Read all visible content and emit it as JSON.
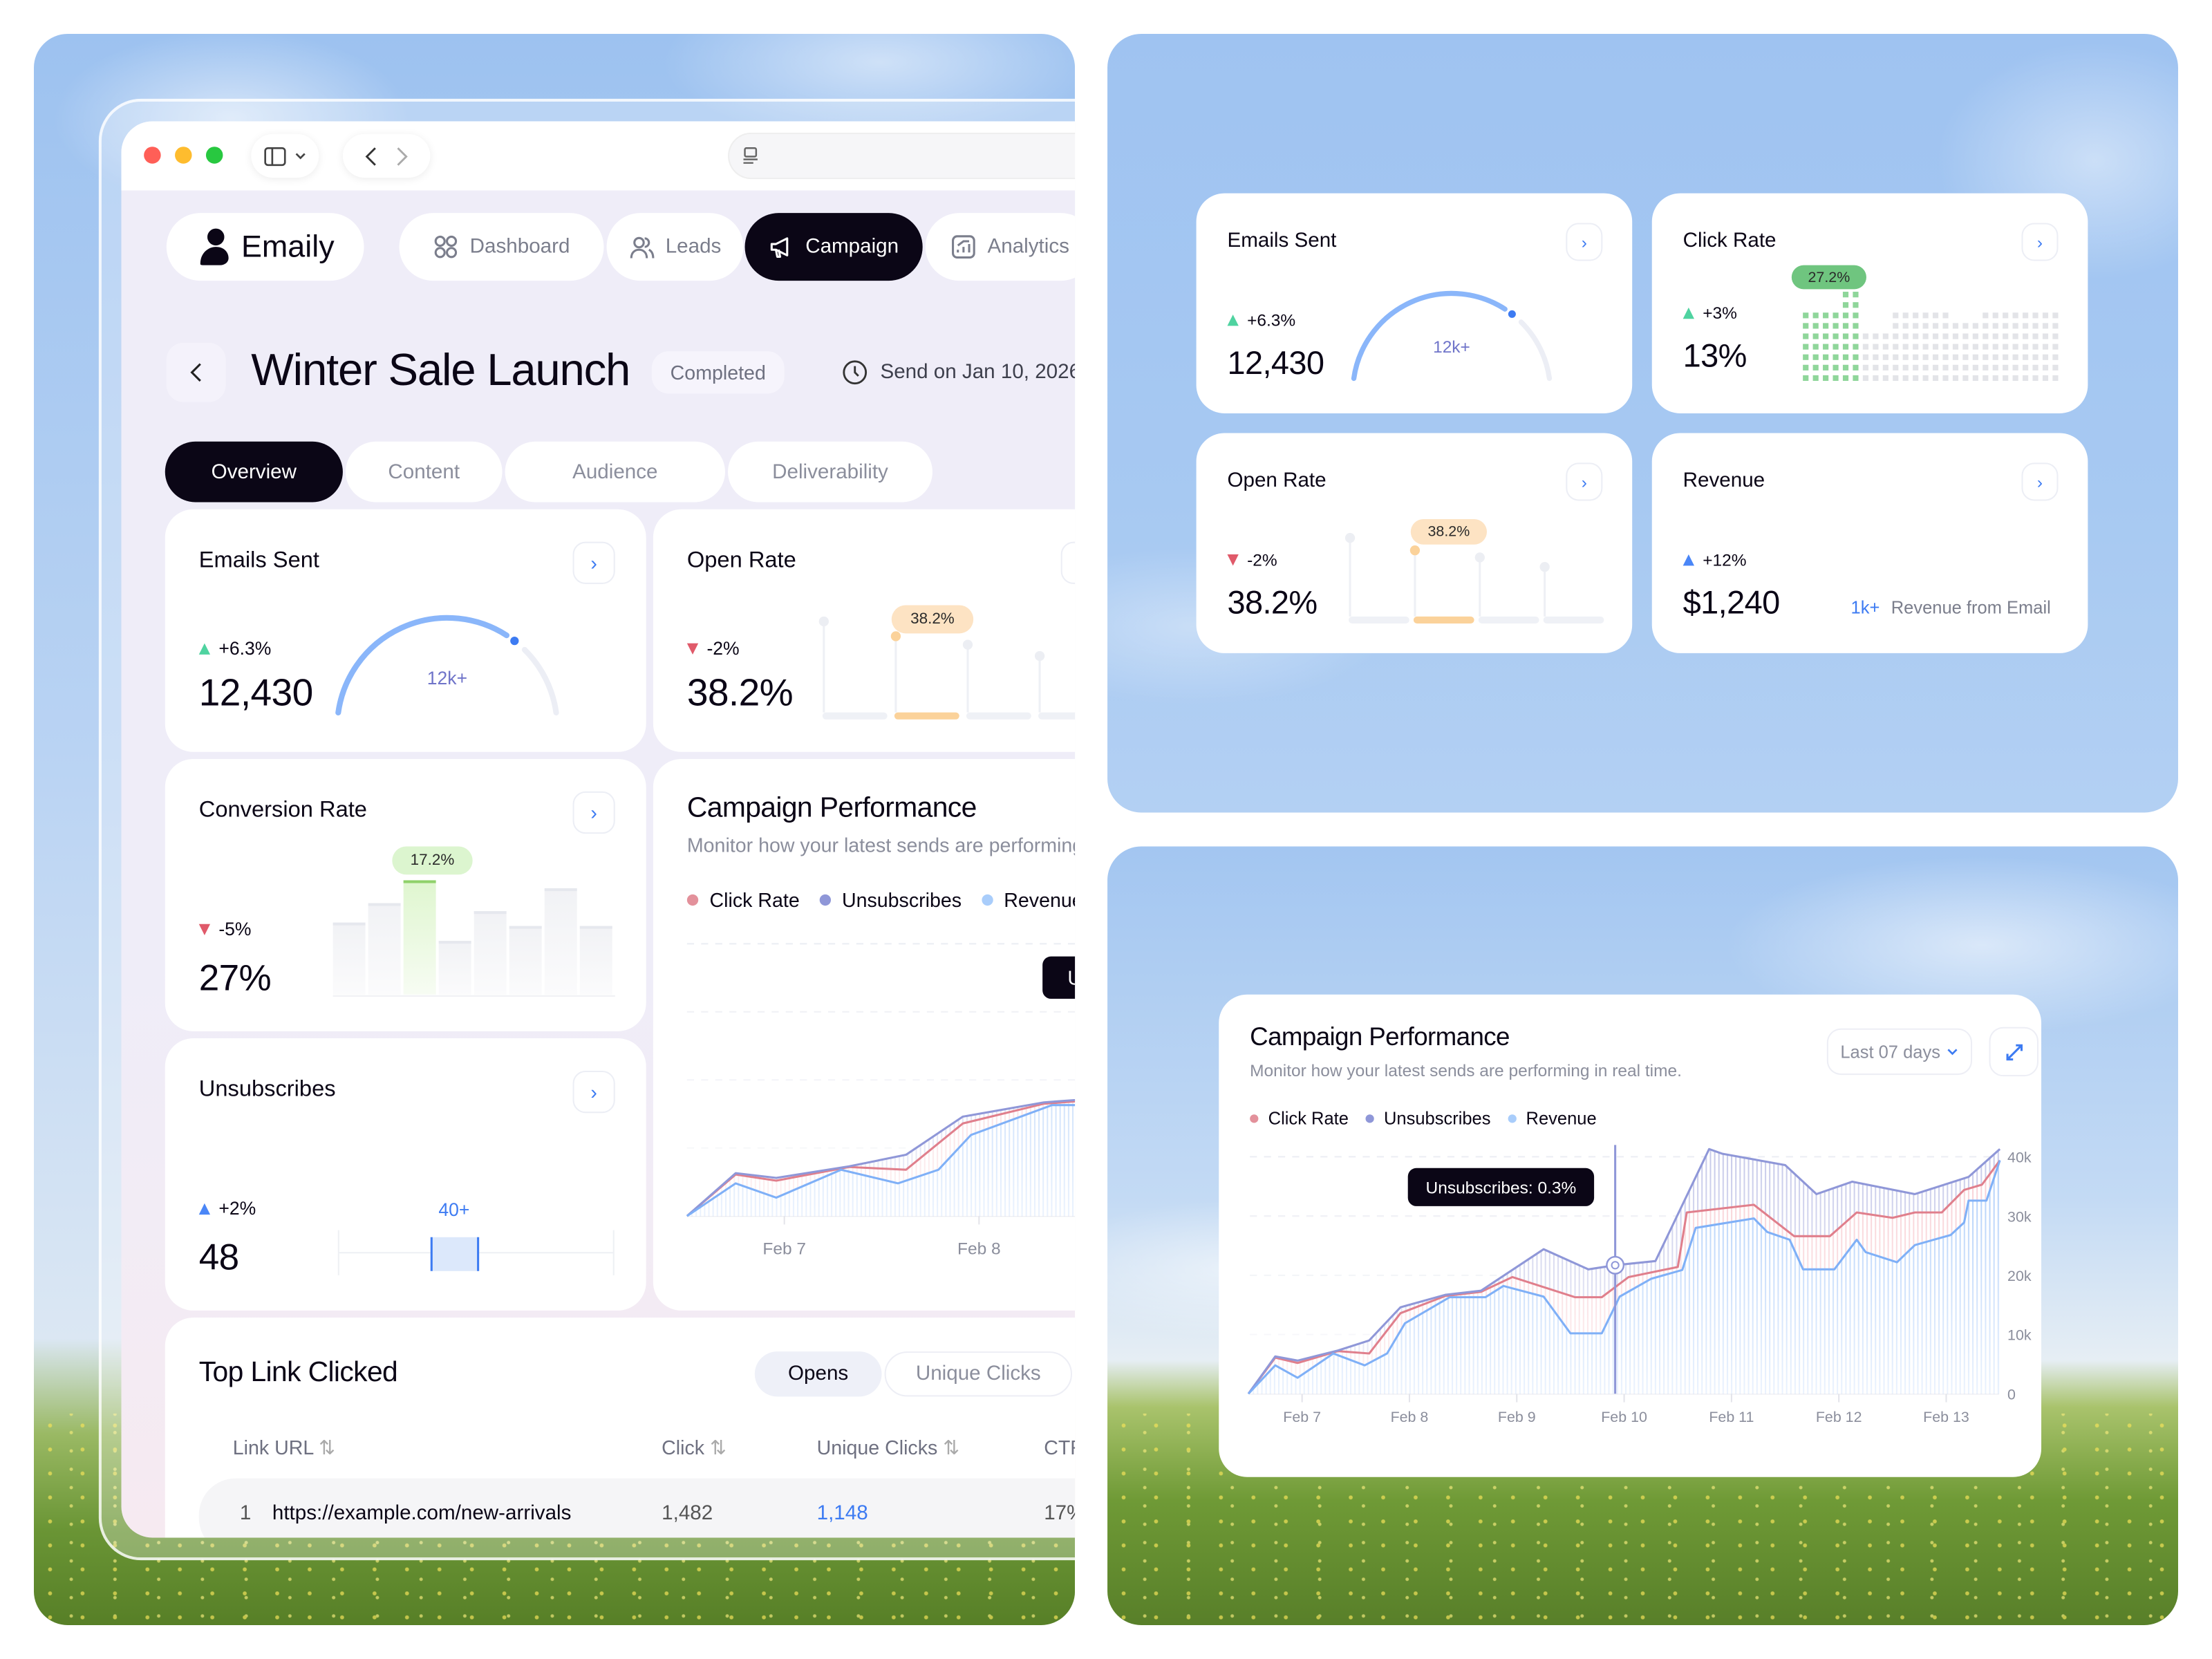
{
  "window": {
    "traffic_lights": [
      "#ff5f57",
      "#febc2e",
      "#28c840"
    ]
  },
  "nav": {
    "brand": "Emaily",
    "items": [
      {
        "label": "Dashboard",
        "icon": "grid-icon"
      },
      {
        "label": "Leads",
        "icon": "users-icon"
      },
      {
        "label": "Campaign",
        "icon": "megaphone-icon",
        "active": true
      },
      {
        "label": "Analytics",
        "icon": "chart-icon"
      }
    ]
  },
  "campaign": {
    "title": "Winter Sale Launch",
    "status": "Completed",
    "send_date": "Send on Jan 10, 2026"
  },
  "tabs": [
    {
      "label": "Overview",
      "active": true
    },
    {
      "label": "Content"
    },
    {
      "label": "Audience"
    },
    {
      "label": "Deliverability"
    }
  ],
  "colors": {
    "dark": "#0b0616",
    "up": "#4fd3a0",
    "down": "#e05a6a",
    "accent": "#3d7bf2",
    "click_rate": "#e07f8c",
    "unsubscribes": "#8f97d8",
    "revenue": "#8dbaf8"
  },
  "cards": {
    "emails_sent": {
      "title": "Emails Sent",
      "change": "+6.3%",
      "trend": "up",
      "value": "12,430",
      "gauge_label": "12k+",
      "gauge_fraction": 0.73
    },
    "open_rate": {
      "title": "Open Rate",
      "change": "-2%",
      "trend": "down",
      "value": "38.2%",
      "badge": "38.2%",
      "levels": [
        0.85,
        0.64,
        0.52,
        0.36
      ],
      "highlight": 1
    },
    "conversion_rate": {
      "title": "Conversion Rate",
      "change": "-5%",
      "trend": "down",
      "value": "27%",
      "badge": "17.2%",
      "levels": [
        0.63,
        0.8,
        1,
        0.47,
        0.73,
        0.6,
        0.93,
        0.6
      ],
      "highlight": 2
    },
    "unsubscribes": {
      "title": "Unsubscribes",
      "change": "+2%",
      "trend": "up",
      "value": "48",
      "marker_label": "40+",
      "marker_position": 0.42
    },
    "click_rate": {
      "title": "Click Rate",
      "change": "+3%",
      "trend": "up",
      "value": "13%",
      "badge": "27.2%",
      "columns": [
        7,
        7,
        7,
        7,
        9,
        9,
        5,
        5,
        5,
        7,
        7,
        7,
        7,
        7,
        7,
        6,
        6,
        6,
        7,
        7,
        7,
        7,
        7,
        7,
        7,
        7
      ],
      "highlighted_columns": 6
    },
    "revenue": {
      "title": "Revenue",
      "change": "+12%",
      "trend": "up",
      "value": "$1,240",
      "note_value": "1k+",
      "note": "Revenue from Email"
    }
  },
  "performance": {
    "title": "Campaign Performance",
    "subtitle": "Monitor how your latest sends are performing in real time.",
    "range": "Last 07 days",
    "tooltip": "Unsubscribes: 0.3%"
  },
  "chart_data": {
    "type": "area",
    "title": "Campaign Performance",
    "x_ticks": [
      "Feb 7",
      "Feb 8",
      "Feb 9",
      "Feb 10",
      "Feb 11",
      "Feb 12",
      "Feb 13"
    ],
    "y_ticks": [
      {
        "value": 0,
        "label": "0"
      },
      {
        "value": 10000,
        "label": "10k"
      },
      {
        "value": 20000,
        "label": "20k"
      },
      {
        "value": 30000,
        "label": "30k"
      },
      {
        "value": 40000,
        "label": "40k"
      }
    ],
    "ylim": [
      0,
      40000
    ],
    "grid": true,
    "legend": "top-left",
    "crosshair_x": "Feb 9 22:00",
    "series": [
      {
        "name": "Click Rate",
        "color": "#e07f8c",
        "points": [
          [
            "Feb 6 12:00",
            0
          ],
          [
            "Feb 6 18:00",
            6100
          ],
          [
            "Feb 6 23:00",
            5200
          ],
          [
            "Feb 7 08:00",
            7200
          ],
          [
            "Feb 7 15:00",
            6800
          ],
          [
            "Feb 7 22:00",
            13600
          ],
          [
            "Feb 8 08:00",
            16500
          ],
          [
            "Feb 8 16:00",
            17200
          ],
          [
            "Feb 8 23:00",
            19700
          ],
          [
            "Feb 9 13:00",
            16300
          ],
          [
            "Feb 9 19:00",
            16300
          ],
          [
            "Feb 10 01:00",
            19700
          ],
          [
            "Feb 10 12:00",
            21400
          ],
          [
            "Feb 10 14:00",
            30600
          ],
          [
            "Feb 11 05:00",
            31900
          ],
          [
            "Feb 11 14:00",
            26600
          ],
          [
            "Feb 11 22:00",
            26600
          ],
          [
            "Feb 12 04:00",
            30600
          ],
          [
            "Feb 12 12:00",
            29700
          ],
          [
            "Feb 12 17:00",
            30600
          ],
          [
            "Feb 12 23:00",
            30600
          ],
          [
            "Feb 13 04:00",
            34400
          ],
          [
            "Feb 13 08:00",
            35300
          ],
          [
            "Feb 13 12:00",
            39400
          ]
        ]
      },
      {
        "name": "Unsubscribes",
        "color": "#8f97d8",
        "points": [
          [
            "Feb 6 12:00",
            0
          ],
          [
            "Feb 6 18:00",
            6300
          ],
          [
            "Feb 6 23:00",
            5600
          ],
          [
            "Feb 7 08:00",
            7300
          ],
          [
            "Feb 7 15:00",
            9000
          ],
          [
            "Feb 7 22:00",
            14600
          ],
          [
            "Feb 8 08:00",
            16700
          ],
          [
            "Feb 8 16:00",
            17400
          ],
          [
            "Feb 9 06:00",
            24400
          ],
          [
            "Feb 9 16:00",
            21000
          ],
          [
            "Feb 9 22:00",
            21700
          ],
          [
            "Feb 10 07:00",
            22400
          ],
          [
            "Feb 10 19:00",
            41300
          ],
          [
            "Feb 10 22:00",
            40500
          ],
          [
            "Feb 11 12:00",
            38600
          ],
          [
            "Feb 11 19:00",
            33700
          ],
          [
            "Feb 12 03:00",
            35800
          ],
          [
            "Feb 12 17:00",
            33700
          ],
          [
            "Feb 13 05:00",
            36600
          ],
          [
            "Feb 13 12:00",
            41300
          ]
        ]
      },
      {
        "name": "Revenue",
        "color": "#8dbaf8",
        "points": [
          [
            "Feb 6 12:00",
            0
          ],
          [
            "Feb 6 18:00",
            4800
          ],
          [
            "Feb 6 23:00",
            2700
          ],
          [
            "Feb 7 07:00",
            6800
          ],
          [
            "Feb 7 14:00",
            4800
          ],
          [
            "Feb 7 19:00",
            6800
          ],
          [
            "Feb 7 23:00",
            11900
          ],
          [
            "Feb 8 09:00",
            16300
          ],
          [
            "Feb 8 17:00",
            16300
          ],
          [
            "Feb 8 21:00",
            18200
          ],
          [
            "Feb 9 06:00",
            16400
          ],
          [
            "Feb 9 12:00",
            10200
          ],
          [
            "Feb 9 19:00",
            10200
          ],
          [
            "Feb 9 23:00",
            16400
          ],
          [
            "Feb 10 06:00",
            19400
          ],
          [
            "Feb 10 13:00",
            20900
          ],
          [
            "Feb 10 16:00",
            28000
          ],
          [
            "Feb 11 05:00",
            29600
          ],
          [
            "Feb 11 08:00",
            27300
          ],
          [
            "Feb 11 13:00",
            26000
          ],
          [
            "Feb 11 16:00",
            21000
          ],
          [
            "Feb 11 23:00",
            21000
          ],
          [
            "Feb 12 04:00",
            26000
          ],
          [
            "Feb 12 06:00",
            23900
          ],
          [
            "Feb 12 13:00",
            22200
          ],
          [
            "Feb 12 17:00",
            25100
          ],
          [
            "Feb 13 01:00",
            26800
          ],
          [
            "Feb 13 04:00",
            28900
          ],
          [
            "Feb 13 05:00",
            32600
          ],
          [
            "Feb 13 09:00",
            32600
          ],
          [
            "Feb 13 12:00",
            39400
          ]
        ]
      }
    ]
  },
  "top_links": {
    "title": "Top Link Clicked",
    "toggle": [
      {
        "label": "Opens",
        "active": true
      },
      {
        "label": "Unique Clicks"
      }
    ],
    "columns": [
      "Link URL",
      "Click",
      "Unique Clicks",
      "CTR"
    ],
    "sort_icon": "sort-icon",
    "rows": [
      {
        "rank": "1",
        "url": "https://example.com/new-arrivals",
        "clicks": "1,482",
        "unique_clicks": "1,148",
        "ctr": "17%"
      }
    ]
  }
}
